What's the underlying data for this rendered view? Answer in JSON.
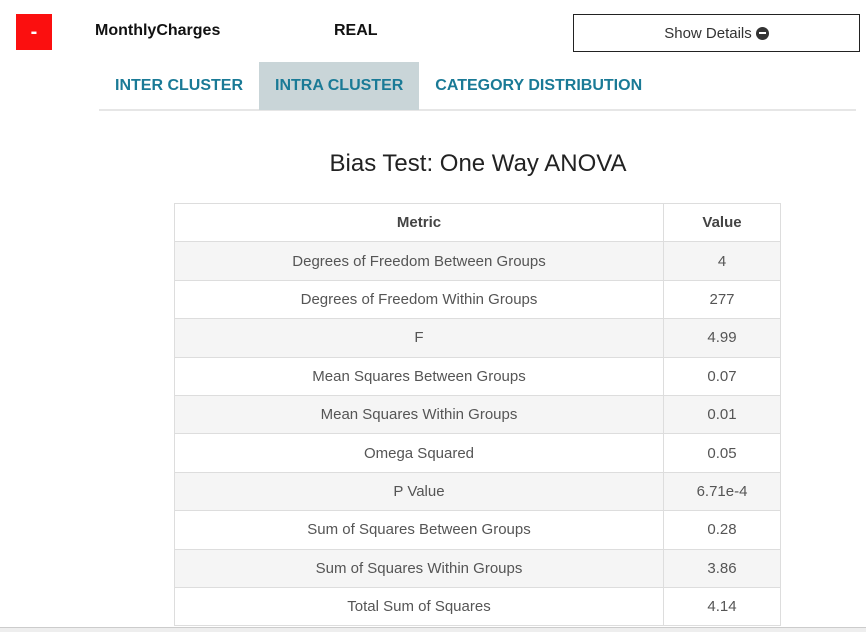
{
  "header": {
    "collapse_label": "-",
    "field_name": "MonthlyCharges",
    "field_type": "REAL",
    "details_label": "Show Details",
    "details_icon": "minus-circle-icon"
  },
  "tabs": [
    {
      "label": "INTER CLUSTER",
      "active": false
    },
    {
      "label": "INTRA CLUSTER",
      "active": true
    },
    {
      "label": "CATEGORY DISTRIBUTION",
      "active": false
    }
  ],
  "section_title": "Bias Test: One Way ANOVA",
  "table": {
    "columns": [
      "Metric",
      "Value"
    ],
    "rows": [
      [
        "Degrees of Freedom Between Groups",
        "4"
      ],
      [
        "Degrees of Freedom Within Groups",
        "277"
      ],
      [
        "F",
        "4.99"
      ],
      [
        "Mean Squares Between Groups",
        "0.07"
      ],
      [
        "Mean Squares Within Groups",
        "0.01"
      ],
      [
        "Omega Squared",
        "0.05"
      ],
      [
        "P Value",
        "6.71e-4"
      ],
      [
        "Sum of Squares Between Groups",
        "0.28"
      ],
      [
        "Sum of Squares Within Groups",
        "3.86"
      ],
      [
        "Total Sum of Squares",
        "4.14"
      ]
    ]
  },
  "colors": {
    "collapse": "#fb0f0f",
    "tab_text": "#1a7a96",
    "active_tab_bg": "#c9d5d8"
  }
}
